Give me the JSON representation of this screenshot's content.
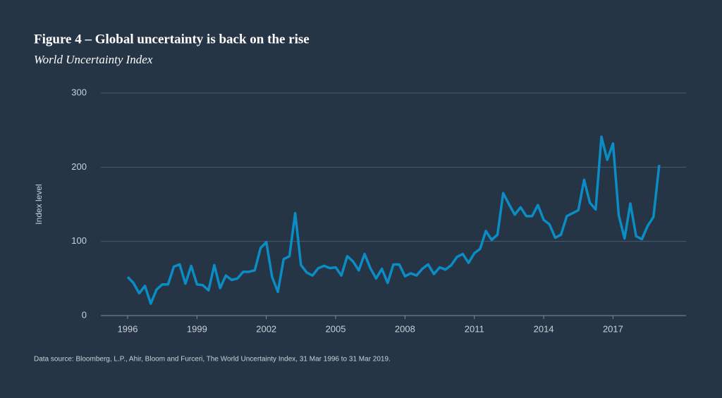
{
  "chart_data": {
    "type": "line",
    "title": "Figure 4 – Global uncertainty is back on the rise",
    "subtitle": "World Uncertainty Index",
    "y_label": "Index level",
    "source": "Data source: Bloomberg, L.P., Ahir, Bloom and Furceri, The World Uncertainty Index, 31 Mar 1996 to 31 Mar 2019.",
    "x": [
      1996,
      1996.25,
      1996.5,
      1996.75,
      1997,
      1997.25,
      1997.5,
      1997.75,
      1998,
      1998.25,
      1998.5,
      1998.75,
      1999,
      1999.25,
      1999.5,
      1999.75,
      2000,
      2000.25,
      2000.5,
      2000.75,
      2001,
      2001.25,
      2001.5,
      2001.75,
      2002,
      2002.25,
      2002.5,
      2002.75,
      2003,
      2003.25,
      2003.5,
      2003.75,
      2004,
      2004.25,
      2004.5,
      2004.75,
      2005,
      2005.25,
      2005.5,
      2005.75,
      2006,
      2006.25,
      2006.5,
      2006.75,
      2007,
      2007.25,
      2007.5,
      2007.75,
      2008,
      2008.25,
      2008.5,
      2008.75,
      2009,
      2009.25,
      2009.5,
      2009.75,
      2010,
      2010.25,
      2010.5,
      2010.75,
      2011,
      2011.25,
      2011.5,
      2011.75,
      2012,
      2012.25,
      2012.5,
      2012.75,
      2013,
      2013.25,
      2013.5,
      2013.75,
      2014,
      2014.25,
      2014.5,
      2014.75,
      2015,
      2015.25,
      2015.5,
      2015.75,
      2016,
      2016.25,
      2016.5,
      2016.75,
      2017,
      2017.25,
      2017.5,
      2017.75,
      2018,
      2018.25,
      2018.5,
      2018.75,
      2019
    ],
    "series": [
      {
        "name": "World Uncertainty Index",
        "color": "#0a8cc4",
        "values": [
          52,
          44,
          30,
          40,
          16,
          35,
          42,
          42,
          66,
          69,
          43,
          67,
          42,
          41,
          34,
          68,
          37,
          54,
          48,
          50,
          59,
          59,
          61,
          91,
          99,
          52,
          32,
          76,
          80,
          138,
          68,
          58,
          54,
          64,
          67,
          64,
          65,
          54,
          80,
          73,
          61,
          83,
          64,
          50,
          63,
          44,
          69,
          69,
          53,
          57,
          54,
          63,
          69,
          56,
          65,
          62,
          68,
          79,
          83,
          71,
          84,
          90,
          114,
          102,
          109,
          165,
          150,
          136,
          146,
          134,
          134,
          149,
          129,
          123,
          105,
          109,
          134,
          138,
          142,
          183,
          152,
          143,
          241,
          210,
          232,
          135,
          104,
          151,
          107,
          103,
          121,
          133,
          203
        ]
      }
    ],
    "xlim": [
      1994.84,
      2020.16
    ],
    "xticks": [
      1996,
      1999,
      2002,
      2005,
      2008,
      2011,
      2014,
      2017
    ],
    "ylim": [
      0,
      300
    ],
    "yticks": [
      0,
      100,
      200,
      300
    ],
    "grid": true
  }
}
